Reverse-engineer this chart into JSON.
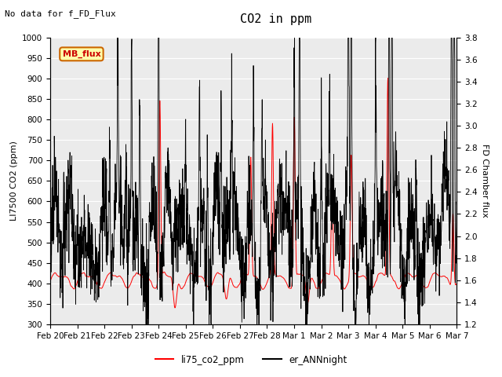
{
  "title": "CO2 in ppm",
  "ylabel_left": "LI7500 CO2 (ppm)",
  "ylabel_right": "FD Chamber flux",
  "ylim_left": [
    300,
    1000
  ],
  "ylim_right": [
    1.2,
    3.8
  ],
  "annotation_top_left": "No data for f_FD_Flux",
  "legend_box_label": "MB_flux",
  "legend_labels": [
    "li75_co2_ppm",
    "er_ANNnight"
  ],
  "line_colors": [
    "red",
    "black"
  ],
  "bg_color": "#ebebeb",
  "date_labels": [
    "Feb 20",
    "Feb 21",
    "Feb 22",
    "Feb 23",
    "Feb 24",
    "Feb 25",
    "Feb 26",
    "Feb 27",
    "Feb 28",
    "Mar 1",
    "Mar 2",
    "Mar 3",
    "Mar 4",
    "Mar 5",
    "Mar 6",
    "Mar 7"
  ],
  "n_points": 2000,
  "title_fontsize": 11,
  "annotation_fontsize": 8,
  "ylabel_fontsize": 8,
  "tick_fontsize": 7.5
}
